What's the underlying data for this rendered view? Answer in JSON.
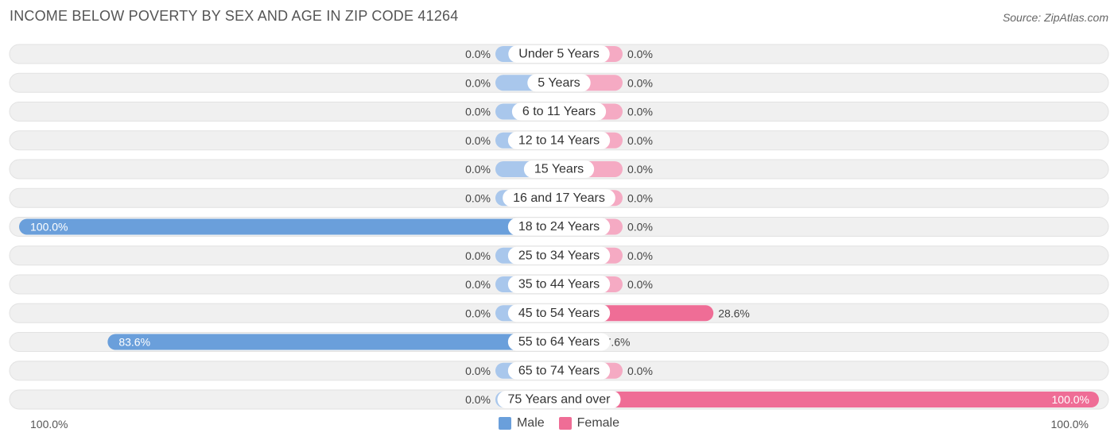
{
  "title": "INCOME BELOW POVERTY BY SEX AND AGE IN ZIP CODE 41264",
  "source": "Source: ZipAtlas.com",
  "colors": {
    "male": "#6a9fdb",
    "male_light": "#a9c7ec",
    "female": "#ef6d96",
    "female_light": "#f5aac3",
    "row_bg": "#f0f0f0"
  },
  "legend": {
    "male_label": "Male",
    "female_label": "Female"
  },
  "axis": {
    "left_label": "100.0%",
    "right_label": "100.0%"
  },
  "chart_data": {
    "type": "bar",
    "orientation": "horizontal-diverging",
    "title": "INCOME BELOW POVERTY BY SEX AND AGE IN ZIP CODE 41264",
    "xlim": [
      -100,
      100
    ],
    "categories": [
      "Under 5 Years",
      "5 Years",
      "6 to 11 Years",
      "12 to 14 Years",
      "15 Years",
      "16 and 17 Years",
      "18 to 24 Years",
      "25 to 34 Years",
      "35 to 44 Years",
      "45 to 54 Years",
      "55 to 64 Years",
      "65 to 74 Years",
      "75 Years and over"
    ],
    "series": [
      {
        "name": "Male",
        "values": [
          0.0,
          0.0,
          0.0,
          0.0,
          0.0,
          0.0,
          100.0,
          0.0,
          0.0,
          0.0,
          83.6,
          0.0,
          0.0
        ],
        "labels": [
          "0.0%",
          "0.0%",
          "0.0%",
          "0.0%",
          "0.0%",
          "0.0%",
          "100.0%",
          "0.0%",
          "0.0%",
          "0.0%",
          "83.6%",
          "0.0%",
          "0.0%"
        ]
      },
      {
        "name": "Female",
        "values": [
          0.0,
          0.0,
          0.0,
          0.0,
          0.0,
          0.0,
          0.0,
          0.0,
          0.0,
          28.6,
          7.6,
          0.0,
          100.0
        ],
        "labels": [
          "0.0%",
          "0.0%",
          "0.0%",
          "0.0%",
          "0.0%",
          "0.0%",
          "0.0%",
          "0.0%",
          "0.0%",
          "28.6%",
          "7.6%",
          "0.0%",
          "100.0%"
        ]
      }
    ],
    "legend_position": "bottom-center"
  }
}
